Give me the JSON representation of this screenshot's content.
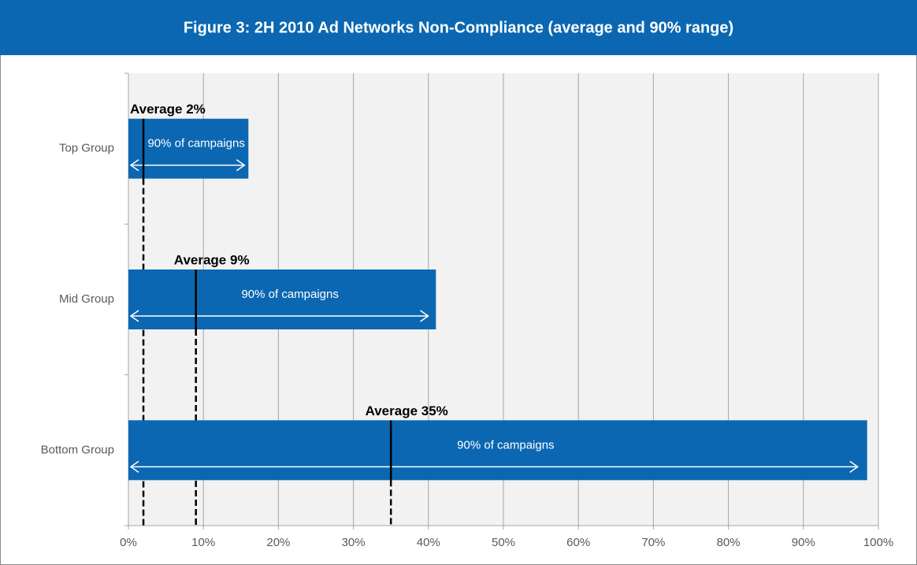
{
  "chart_data": {
    "type": "range_bar",
    "title": "Figure 3: 2H 2010 Ad Networks Non-Compliance (average and 90% range)",
    "categories": [
      "Top Group",
      "Mid Group",
      "Bottom Group"
    ],
    "values": [
      16,
      41,
      98.5
    ],
    "value_labels": [
      "90% of campaigns",
      "90% of campaigns",
      "90% of campaigns"
    ],
    "averages": [
      2,
      9,
      35
    ],
    "average_labels": [
      "Average 2%",
      "Average 9%",
      "Average 35%"
    ],
    "color": "#0b67b1",
    "xlim": [
      0,
      100
    ],
    "xticks": [
      {
        "value": 0,
        "label": "0%"
      },
      {
        "value": 10,
        "label": "10%"
      },
      {
        "value": 20,
        "label": "20%"
      },
      {
        "value": 30,
        "label": "30%"
      },
      {
        "value": 40,
        "label": "40%"
      },
      {
        "value": 50,
        "label": "50%"
      },
      {
        "value": 60,
        "label": "60%"
      },
      {
        "value": 70,
        "label": "70%"
      },
      {
        "value": 80,
        "label": "80%"
      },
      {
        "value": 90,
        "label": "90%"
      },
      {
        "value": 100,
        "label": "100%"
      }
    ],
    "grid": true
  }
}
